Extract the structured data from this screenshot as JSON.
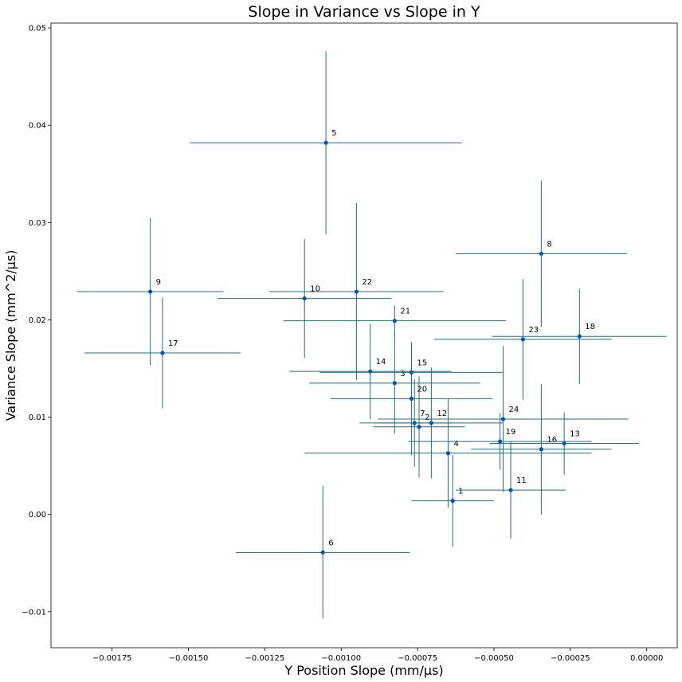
{
  "chart_data": {
    "type": "scatter",
    "title": "Slope in Variance vs Slope in Y",
    "xlabel": "Y Position Slope (mm/µs)",
    "ylabel": "Variance Slope (mm^2/µs)",
    "xlim": [
      -0.00195,
      0.0001
    ],
    "ylim": [
      -0.0137,
      0.0505
    ],
    "x_ticks": [
      -0.00175,
      -0.0015,
      -0.00125,
      -0.001,
      -0.00075,
      -0.0005,
      -0.00025,
      0.0
    ],
    "x_tick_labels": [
      "−0.00175",
      "−0.00150",
      "−0.00125",
      "−0.00100",
      "−0.00075",
      "−0.00050",
      "−0.00025",
      "0.00000"
    ],
    "y_ticks": [
      -0.01,
      0.0,
      0.01,
      0.02,
      0.03,
      0.04,
      0.05
    ],
    "y_tick_labels": [
      "−0.01",
      "0.00",
      "0.01",
      "0.02",
      "0.03",
      "0.04",
      "0.05"
    ],
    "grid": false,
    "point_color": "#0050d0",
    "errorbar_color": "#1f6f8b",
    "points": [
      {
        "label": "1",
        "x": -0.000635,
        "y": 0.0014,
        "xerr": 0.000135,
        "yerr": 0.0047
      },
      {
        "label": "2",
        "x": -0.000745,
        "y": 0.009,
        "xerr": 0.00015,
        "yerr": 0.0052
      },
      {
        "label": "3",
        "x": -0.000825,
        "y": 0.0135,
        "xerr": 0.00028,
        "yerr": 0.0052
      },
      {
        "label": "4",
        "x": -0.00065,
        "y": 0.0063,
        "xerr": 0.00047,
        "yerr": 0.0056
      },
      {
        "label": "5",
        "x": -0.00105,
        "y": 0.0382,
        "xerr": 0.000445,
        "yerr": 0.0094
      },
      {
        "label": "6",
        "x": -0.00106,
        "y": -0.0039,
        "xerr": 0.000285,
        "yerr": 0.0068
      },
      {
        "label": "7",
        "x": -0.00076,
        "y": 0.0094,
        "xerr": 0.00013,
        "yerr": 0.0045
      },
      {
        "label": "8",
        "x": -0.000345,
        "y": 0.0268,
        "xerr": 0.00028,
        "yerr": 0.0075
      },
      {
        "label": "9",
        "x": -0.001625,
        "y": 0.0229,
        "xerr": 0.00024,
        "yerr": 0.0076
      },
      {
        "label": "10",
        "x": -0.00112,
        "y": 0.0222,
        "xerr": 0.000285,
        "yerr": 0.0061
      },
      {
        "label": "11",
        "x": -0.000445,
        "y": 0.0025,
        "xerr": 0.00018,
        "yerr": 0.005
      },
      {
        "label": "12",
        "x": -0.000705,
        "y": 0.0094,
        "xerr": 0.000235,
        "yerr": 0.0057
      },
      {
        "label": "13",
        "x": -0.00027,
        "y": 0.0073,
        "xerr": 0.000245,
        "yerr": 0.0032
      },
      {
        "label": "14",
        "x": -0.000905,
        "y": 0.0147,
        "xerr": 0.000265,
        "yerr": 0.0049
      },
      {
        "label": "15",
        "x": -0.00077,
        "y": 0.0146,
        "xerr": 0.0003,
        "yerr": 0.0031
      },
      {
        "label": "16",
        "x": -0.000345,
        "y": 0.0067,
        "xerr": 0.00023,
        "yerr": 0.0067
      },
      {
        "label": "17",
        "x": -0.001585,
        "y": 0.0166,
        "xerr": 0.000255,
        "yerr": 0.0057
      },
      {
        "label": "18",
        "x": -0.00022,
        "y": 0.0183,
        "xerr": 0.000285,
        "yerr": 0.0049
      },
      {
        "label": "19",
        "x": -0.00048,
        "y": 0.0075,
        "xerr": 0.0003,
        "yerr": 0.0029
      },
      {
        "label": "20",
        "x": -0.00077,
        "y": 0.0119,
        "xerr": 0.000265,
        "yerr": 0.0058
      },
      {
        "label": "21",
        "x": -0.000825,
        "y": 0.0199,
        "xerr": 0.000365,
        "yerr": 0.0016
      },
      {
        "label": "22",
        "x": -0.00095,
        "y": 0.0229,
        "xerr": 0.000285,
        "yerr": 0.0091
      },
      {
        "label": "23",
        "x": -0.000405,
        "y": 0.018,
        "xerr": 0.00029,
        "yerr": 0.0062
      },
      {
        "label": "24",
        "x": -0.00047,
        "y": 0.0098,
        "xerr": 0.00041,
        "yerr": 0.0075
      }
    ]
  }
}
